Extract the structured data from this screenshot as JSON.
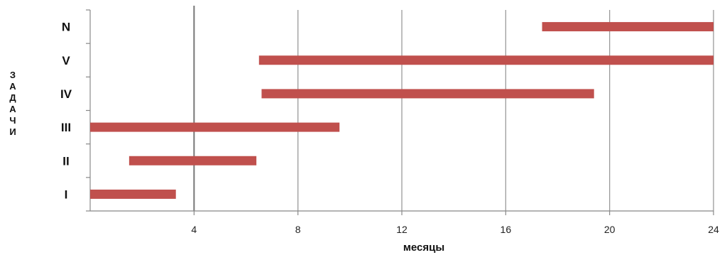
{
  "chart_data": {
    "type": "bar",
    "orientation": "horizontal-range",
    "categories": [
      "I",
      "II",
      "III",
      "IV",
      "V",
      "N"
    ],
    "ranges": [
      {
        "category": "I",
        "start": 0,
        "end": 3.3
      },
      {
        "category": "II",
        "start": 1.5,
        "end": 6.4
      },
      {
        "category": "III",
        "start": 0,
        "end": 9.6
      },
      {
        "category": "IV",
        "start": 6.6,
        "end": 19.4
      },
      {
        "category": "V",
        "start": 6.5,
        "end": 24
      },
      {
        "category": "N",
        "start": 17.4,
        "end": 24
      }
    ],
    "x_ticks": [
      "4",
      "8",
      "12",
      "16",
      "20",
      "24"
    ],
    "xlim": [
      0,
      24
    ],
    "xlabel": "месяцы",
    "ylabel_letters": [
      "З",
      "А",
      "Д",
      "А",
      "Ч",
      "И"
    ],
    "grid": true,
    "bar_color": "#c0504d"
  }
}
